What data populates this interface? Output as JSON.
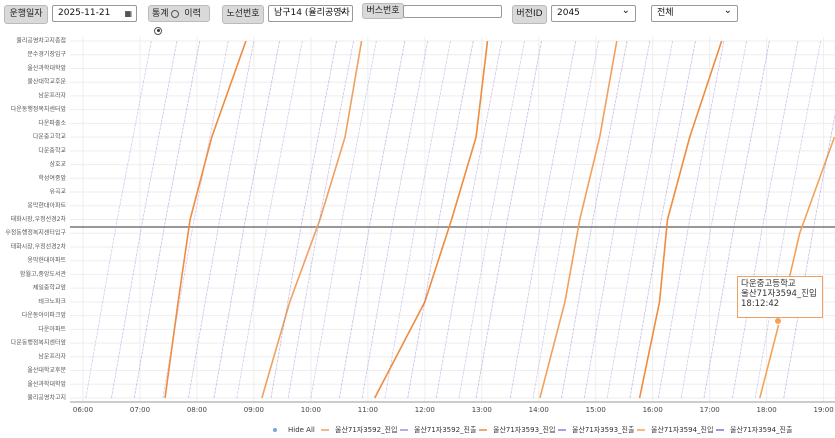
{
  "toolbar": {
    "date_label": "운행일자",
    "date": "2025-11-21",
    "stat": "통계",
    "history": "이력",
    "route_label": "노선번호",
    "route": "남구14 (율리공영차",
    "bus_label": "버스번호",
    "version_label": "버전ID",
    "version": "2045",
    "filter": "전체"
  },
  "tooltip": {
    "stop": "다운중고등학교",
    "bus": "울산71자3594_진입",
    "time": "18:12:42"
  },
  "chart_data": {
    "type": "marey",
    "hide_all": "Hide All",
    "categories": [
      "율리공영차고지",
      "울산과학대학앞",
      "울산대학교후문",
      "남운프라자",
      "다운동행정복지센터앞",
      "다운아파트",
      "다운동아이파크앞",
      "테크노파크",
      "제일중학교앞",
      "함월고,중앙도서관",
      "옹막현대아파트",
      "태화시장,우정선경2차",
      "우정동행정복지센터입구",
      "태화시장,우정선경2차",
      "옹막현대아파트",
      "유곡교",
      "학성여중앞",
      "삼호교",
      "다운중학교",
      "다운중고학교",
      "다운파출소",
      "다운동행정복지센터앞",
      "남운프라자",
      "울산대학교후문",
      "울산과학대학앞",
      "문수경기장입구",
      "율리공영차고지종점"
    ],
    "xlim": [
      5.93,
      19.2
    ],
    "xticks": [
      {
        "value": 6,
        "label": "06:00"
      },
      {
        "value": 7,
        "label": "07:00"
      },
      {
        "value": 8,
        "label": "08:00"
      },
      {
        "value": 9,
        "label": "09:00"
      },
      {
        "value": 10,
        "label": "10:00"
      },
      {
        "value": 11,
        "label": "11:00"
      },
      {
        "value": 12,
        "label": "12:00"
      },
      {
        "value": 13,
        "label": "13:00"
      },
      {
        "value": 14,
        "label": "14:00"
      },
      {
        "value": 15,
        "label": "15:00"
      },
      {
        "value": 16,
        "label": "16:00"
      },
      {
        "value": 17,
        "label": "17:00"
      },
      {
        "value": 18,
        "label": "18:00"
      },
      {
        "value": 19,
        "label": "19:00"
      }
    ],
    "grid": true,
    "series": [
      {
        "name": "울산71자3592_진입",
        "color": "#f0a060",
        "trips": [
          {
            "x": [
              9.14,
              9.63,
              10.16,
              10.6,
              10.89
            ],
            "y": [
              0,
              7,
              13,
              19,
              26
            ]
          },
          {
            "x": [
              14.02,
              14.46,
              14.72,
              15.07,
              15.37
            ],
            "y": [
              0,
              7,
              13,
              19,
              26
            ]
          }
        ]
      },
      {
        "name": "울산71자3592_진출",
        "color": "#9f8fd6",
        "trips": [
          {
            "x": [
              6.05,
              6.6,
              7.2
            ],
            "y": [
              0,
              13,
              26
            ]
          },
          {
            "x": [
              7.4,
              7.95,
              8.55
            ],
            "y": [
              0,
              13,
              26
            ]
          },
          {
            "x": [
              8.7,
              9.25,
              9.85
            ],
            "y": [
              0,
              13,
              26
            ]
          },
          {
            "x": [
              10.0,
              10.55,
              11.15
            ],
            "y": [
              0,
              13,
              26
            ]
          },
          {
            "x": [
              11.3,
              11.85,
              12.45
            ],
            "y": [
              0,
              13,
              26
            ]
          },
          {
            "x": [
              12.6,
              13.15,
              13.75
            ],
            "y": [
              0,
              13,
              26
            ]
          },
          {
            "x": [
              13.9,
              14.45,
              15.05
            ],
            "y": [
              0,
              13,
              26
            ]
          },
          {
            "x": [
              15.2,
              15.75,
              16.35
            ],
            "y": [
              0,
              13,
              26
            ]
          },
          {
            "x": [
              16.5,
              17.05,
              17.65
            ],
            "y": [
              0,
              13,
              26
            ]
          },
          {
            "x": [
              17.8,
              18.35,
              18.95
            ],
            "y": [
              0,
              13,
              26
            ]
          }
        ]
      },
      {
        "name": "울산71자3593_진입",
        "color": "#ee8c40",
        "trips": [
          {
            "x": [
              7.44,
              7.67,
              7.88,
              8.26,
              8.86
            ],
            "y": [
              0,
              7,
              13,
              19,
              26
            ]
          },
          {
            "x": [
              11.12,
              12.0,
              12.47,
              12.9,
              13.1
            ],
            "y": [
              0,
              7,
              13,
              19,
              26
            ]
          },
          {
            "x": [
              15.77,
              16.12,
              16.26,
              16.65,
              17.21
            ],
            "y": [
              0,
              7,
              13,
              19,
              26
            ]
          }
        ]
      },
      {
        "name": "울산71자3593_진출",
        "color": "#8a7fd0",
        "trips": [
          {
            "x": [
              6.5,
              7.05,
              7.65
            ],
            "y": [
              0,
              13,
              26
            ]
          },
          {
            "x": [
              7.85,
              8.4,
              9.0
            ],
            "y": [
              0,
              13,
              26
            ]
          },
          {
            "x": [
              9.6,
              10.15,
              10.75
            ],
            "y": [
              0,
              13,
              26
            ]
          },
          {
            "x": [
              10.9,
              11.45,
              12.05
            ],
            "y": [
              0,
              13,
              26
            ]
          },
          {
            "x": [
              12.2,
              12.75,
              13.35
            ],
            "y": [
              0,
              13,
              26
            ]
          },
          {
            "x": [
              13.5,
              14.05,
              14.65
            ],
            "y": [
              0,
              13,
              26
            ]
          },
          {
            "x": [
              14.8,
              15.35,
              15.95
            ],
            "y": [
              0,
              13,
              26
            ]
          },
          {
            "x": [
              16.1,
              16.65,
              17.25
            ],
            "y": [
              0,
              13,
              26
            ]
          },
          {
            "x": [
              17.4,
              17.95,
              18.55
            ],
            "y": [
              0,
              13,
              26
            ]
          }
        ]
      },
      {
        "name": "울산71자3594_진입",
        "color": "#f4a25a",
        "trips": [
          {
            "x": [
              17.88,
              18.19,
              18.58,
              19.19
            ],
            "y": [
              0,
              5,
              12,
              19
            ]
          }
        ]
      },
      {
        "name": "울산71자3594_진출",
        "color": "#7d72c8",
        "trips": [
          {
            "x": [
              6.9,
              7.45,
              8.05
            ],
            "y": [
              0,
              13,
              26
            ]
          },
          {
            "x": [
              8.3,
              8.85,
              9.45
            ],
            "y": [
              0,
              13,
              26
            ]
          },
          {
            "x": [
              9.3,
              9.85,
              10.45
            ],
            "y": [
              0,
              13,
              26
            ]
          },
          {
            "x": [
              10.5,
              11.05,
              11.65
            ],
            "y": [
              0,
              13,
              26
            ]
          },
          {
            "x": [
              11.7,
              12.25,
              12.85
            ],
            "y": [
              0,
              13,
              26
            ]
          },
          {
            "x": [
              12.9,
              13.45,
              14.05
            ],
            "y": [
              0,
              13,
              26
            ]
          },
          {
            "x": [
              14.4,
              14.95,
              15.55
            ],
            "y": [
              0,
              13,
              26
            ]
          },
          {
            "x": [
              15.6,
              16.15,
              16.75
            ],
            "y": [
              0,
              13,
              26
            ]
          },
          {
            "x": [
              16.9,
              17.45,
              18.05
            ],
            "y": [
              0,
              13,
              26
            ]
          },
          {
            "x": [
              18.3,
              18.85,
              19.45
            ],
            "y": [
              0,
              13,
              26
            ]
          }
        ]
      }
    ]
  }
}
